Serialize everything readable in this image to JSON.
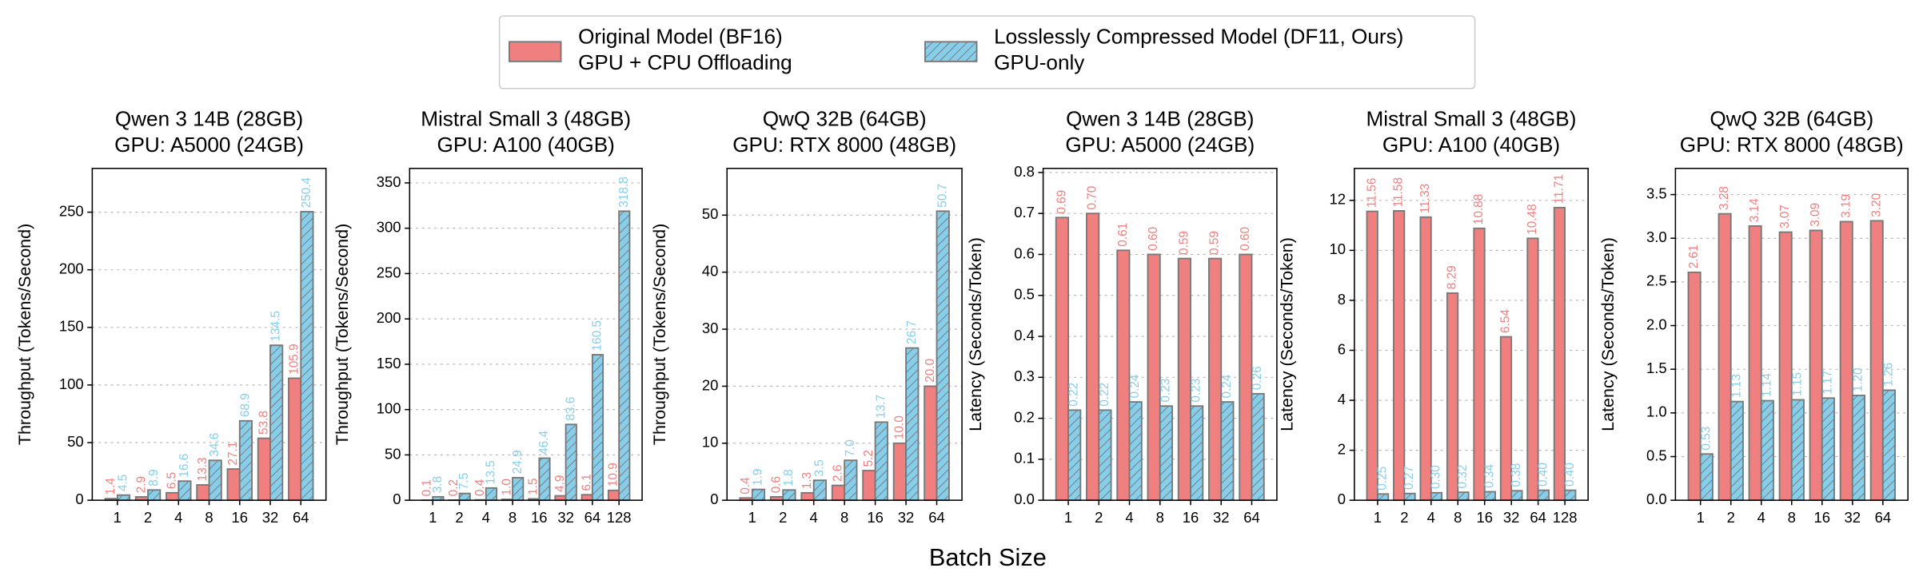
{
  "legend": [
    {
      "label": [
        "Original Model (BF16)",
        "GPU + CPU Offloading"
      ],
      "color": "#f08080",
      "hatch": false
    },
    {
      "label": [
        "Losslessly Compressed Model (DF11, Ours)",
        "GPU-only"
      ],
      "color": "#87ceeb",
      "hatch": true
    }
  ],
  "xlabel": "Batch Size",
  "chart_data": [
    {
      "type": "bar",
      "title": "Qwen 3 14B (28GB)",
      "subtitle": "GPU: A5000 (24GB)",
      "ylabel": "Throughput (Tokens/Second)",
      "categories": [
        "1",
        "2",
        "4",
        "8",
        "16",
        "32",
        "64"
      ],
      "series": [
        {
          "color": "#f08080",
          "hatch": false,
          "values": [
            1.4,
            2.9,
            6.5,
            13.3,
            27.1,
            53.8,
            105.9
          ],
          "value_labels": [
            "1.4",
            "2.9",
            "6.5",
            "13.3",
            "27.1",
            "53.8",
            "105.9"
          ]
        },
        {
          "color": "#87ceeb",
          "hatch": true,
          "values": [
            4.5,
            8.9,
            16.6,
            34.6,
            68.9,
            134.5,
            250.4
          ],
          "value_labels": [
            "4.5",
            "8.9",
            "16.6",
            "34.6",
            "68.9",
            "134.5",
            "250.4"
          ]
        }
      ],
      "ylim": [
        0,
        288
      ],
      "yticks": [
        0,
        50,
        100,
        150,
        200,
        250
      ],
      "grid": true
    },
    {
      "type": "bar",
      "title": "Mistral Small 3 (48GB)",
      "subtitle": "GPU: A100 (40GB)",
      "ylabel": "Throughput (Tokens/Second)",
      "categories": [
        "1",
        "2",
        "4",
        "8",
        "16",
        "32",
        "64",
        "128"
      ],
      "series": [
        {
          "color": "#f08080",
          "hatch": false,
          "values": [
            0.1,
            0.2,
            0.4,
            1.0,
            1.5,
            4.9,
            6.1,
            10.9
          ],
          "value_labels": [
            "0.1",
            "0.2",
            "0.4",
            "1.0",
            "1.5",
            "4.9",
            "6.1",
            "10.9"
          ]
        },
        {
          "color": "#87ceeb",
          "hatch": true,
          "values": [
            3.8,
            7.5,
            13.5,
            24.9,
            46.4,
            83.6,
            160.5,
            318.8
          ],
          "value_labels": [
            "3.8",
            "7.5",
            "13.5",
            "24.9",
            "46.4",
            "83.6",
            "160.5",
            "318.8"
          ]
        }
      ],
      "ylim": [
        0,
        366
      ],
      "yticks": [
        0,
        50,
        100,
        150,
        200,
        250,
        300,
        350
      ],
      "grid": true
    },
    {
      "type": "bar",
      "title": "QwQ 32B (64GB)",
      "subtitle": "GPU: RTX 8000 (48GB)",
      "ylabel": "Throughput (Tokens/Second)",
      "categories": [
        "1",
        "2",
        "4",
        "8",
        "16",
        "32",
        "64"
      ],
      "series": [
        {
          "color": "#f08080",
          "hatch": false,
          "values": [
            0.4,
            0.6,
            1.3,
            2.6,
            5.2,
            10.0,
            20.0
          ],
          "value_labels": [
            "0.4",
            "0.6",
            "1.3",
            "2.6",
            "5.2",
            "10.0",
            "20.0"
          ]
        },
        {
          "color": "#87ceeb",
          "hatch": true,
          "values": [
            1.9,
            1.8,
            3.5,
            7.0,
            13.7,
            26.7,
            50.7
          ],
          "value_labels": [
            "1.9",
            "1.8",
            "3.5",
            "7.0",
            "13.7",
            "26.7",
            "50.7"
          ]
        }
      ],
      "ylim": [
        0,
        58.2
      ],
      "yticks": [
        0,
        10,
        20,
        30,
        40,
        50
      ],
      "grid": true
    },
    {
      "type": "bar",
      "title": "Qwen 3 14B (28GB)",
      "subtitle": "GPU: A5000 (24GB)",
      "ylabel": "Latency (Seconds/Token)",
      "categories": [
        "1",
        "2",
        "4",
        "8",
        "16",
        "32",
        "64"
      ],
      "series": [
        {
          "color": "#f08080",
          "hatch": false,
          "values": [
            0.69,
            0.7,
            0.61,
            0.6,
            0.59,
            0.59,
            0.6
          ],
          "value_labels": [
            "0.69",
            "0.70",
            "0.61",
            "0.60",
            "0.59",
            "0.59",
            "0.60"
          ]
        },
        {
          "color": "#87ceeb",
          "hatch": true,
          "values": [
            0.22,
            0.22,
            0.24,
            0.23,
            0.23,
            0.24,
            0.26
          ],
          "value_labels": [
            "0.22",
            "0.22",
            "0.24",
            "0.23",
            "0.23",
            "0.24",
            "0.26"
          ]
        }
      ],
      "ylim": [
        0,
        0.81
      ],
      "yticks": [
        {
          "value": 0,
          "label": "0.0"
        },
        0.1,
        0.2,
        0.3,
        0.4,
        0.5,
        0.6,
        0.7,
        0.8
      ],
      "grid": true
    },
    {
      "type": "bar",
      "title": "Mistral Small 3 (48GB)",
      "subtitle": "GPU: A100 (40GB)",
      "ylabel": "Latency (Seconds/Token)",
      "categories": [
        "1",
        "2",
        "4",
        "8",
        "16",
        "32",
        "64",
        "128"
      ],
      "series": [
        {
          "color": "#f08080",
          "hatch": false,
          "values": [
            11.56,
            11.58,
            11.33,
            8.29,
            10.88,
            6.54,
            10.48,
            11.71
          ],
          "value_labels": [
            "11.56",
            "11.58",
            "11.33",
            "8.29",
            "10.88",
            "6.54",
            "10.48",
            "11.71"
          ]
        },
        {
          "color": "#87ceeb",
          "hatch": true,
          "values": [
            0.25,
            0.27,
            0.3,
            0.32,
            0.34,
            0.38,
            0.4,
            0.4
          ],
          "value_labels": [
            "0.25",
            "0.27",
            "0.30",
            "0.32",
            "0.34",
            "0.38",
            "0.40",
            "0.40"
          ]
        }
      ],
      "ylim": [
        0,
        13.28
      ],
      "yticks": [
        0,
        2,
        4,
        6,
        8,
        10,
        12
      ],
      "grid": true
    },
    {
      "type": "bar",
      "title": "QwQ 32B (64GB)",
      "subtitle": "GPU: RTX 8000 (48GB)",
      "ylabel": "Latency (Seconds/Token)",
      "categories": [
        "1",
        "2",
        "4",
        "8",
        "16",
        "32",
        "64"
      ],
      "series": [
        {
          "color": "#f08080",
          "hatch": false,
          "values": [
            2.61,
            3.28,
            3.14,
            3.07,
            3.09,
            3.19,
            3.2
          ],
          "value_labels": [
            "2.61",
            "3.28",
            "3.14",
            "3.07",
            "3.09",
            "3.19",
            "3.20"
          ]
        },
        {
          "color": "#87ceeb",
          "hatch": true,
          "values": [
            0.53,
            1.13,
            1.14,
            1.15,
            1.17,
            1.2,
            1.26
          ],
          "value_labels": [
            "0.53",
            "1.13",
            "1.14",
            "1.15",
            "1.17",
            "1.20",
            "1.26"
          ]
        }
      ],
      "ylim": [
        0,
        3.8
      ],
      "yticks": [
        {
          "value": 0,
          "label": "0.0"
        },
        0.5,
        {
          "value": 1,
          "label": "1.0"
        },
        1.5,
        {
          "value": 2,
          "label": "2.0"
        },
        2.5,
        {
          "value": 3,
          "label": "3.0"
        },
        3.5
      ],
      "grid": true
    }
  ]
}
